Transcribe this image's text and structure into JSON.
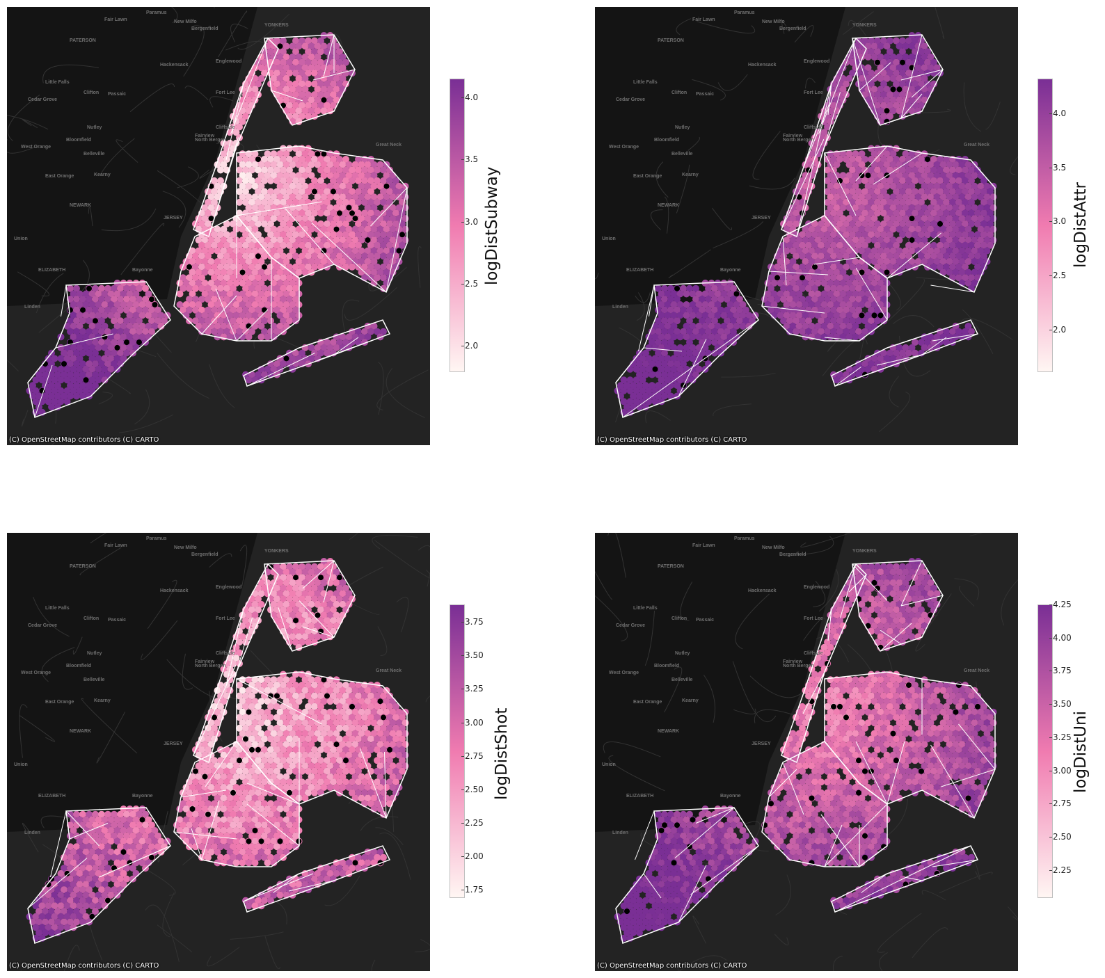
{
  "attribution": "(C) OpenStreetMap contributors (C) CARTO",
  "basemap_labels": [
    "PATERSON",
    "Fair Lawn",
    "Paramus",
    "New Milfo",
    "Bergenfield",
    "YONKERS",
    "Hackensack",
    "Englewood",
    "Little Falls",
    "Clifton",
    "Passaic",
    "Cedar Grove",
    "Nutley",
    "Cliffside",
    "Fort Lee",
    "North Bergen",
    "West Orange",
    "Bloomfield",
    "Belleville",
    "East Orange",
    "Kearny",
    "NEWARK",
    "Union",
    "ELIZABETH",
    "Bayonne",
    "Linden",
    "Great Neck",
    "Fairview",
    "JERSEY"
  ],
  "colors": {
    "low": "#fff6f3",
    "mid": "#f07bb0",
    "high": "#7a2f95",
    "background": "#232323",
    "outline": "#ffffff"
  },
  "panels": [
    {
      "label": "logDistSubway",
      "ticks": [
        "4.0",
        "3.5",
        "3.0",
        "2.5",
        "2.0"
      ],
      "tick_values": [
        4.0,
        3.5,
        3.0,
        2.5,
        2.0
      ],
      "vmin": 1.8,
      "vmax": 4.15
    },
    {
      "label": "logDistAttr",
      "ticks": [
        "4.0",
        "3.5",
        "3.0",
        "2.5",
        "2.0"
      ],
      "tick_values": [
        4.0,
        3.5,
        3.0,
        2.5,
        2.0
      ],
      "vmin": 1.62,
      "vmax": 4.32
    },
    {
      "label": "logDistShot",
      "ticks": [
        "3.75",
        "3.50",
        "3.25",
        "3.00",
        "2.75",
        "2.50",
        "2.25",
        "2.00",
        "1.75"
      ],
      "tick_values": [
        3.75,
        3.5,
        3.25,
        3.0,
        2.75,
        2.5,
        2.25,
        2.0,
        1.75
      ],
      "vmin": 1.7,
      "vmax": 3.88
    },
    {
      "label": "logDistUni",
      "ticks": [
        "4.25",
        "4.00",
        "3.75",
        "3.50",
        "3.25",
        "3.00",
        "2.75",
        "2.50",
        "2.25"
      ],
      "tick_values": [
        4.25,
        4.0,
        3.75,
        3.5,
        3.25,
        3.0,
        2.75,
        2.5,
        2.25
      ],
      "vmin": 2.05,
      "vmax": 4.25
    }
  ]
}
